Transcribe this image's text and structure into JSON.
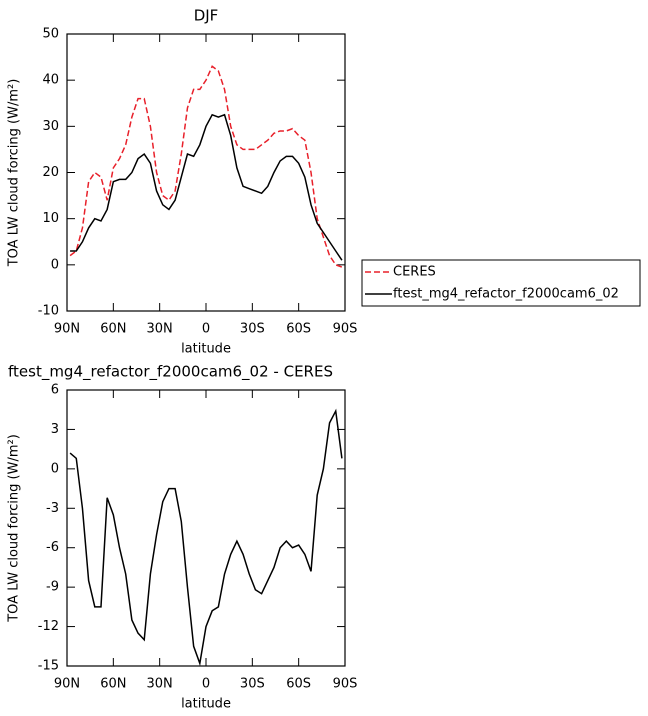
{
  "chart_data": [
    {
      "type": "line",
      "title": "DJF",
      "xlabel": "latitude",
      "ylabel": "TOA LW cloud forcing (W/m²)",
      "x": [
        88,
        84,
        80,
        76,
        72,
        68,
        64,
        60,
        56,
        52,
        48,
        44,
        40,
        36,
        32,
        28,
        24,
        20,
        16,
        12,
        8,
        4,
        0,
        -4,
        -8,
        -12,
        -16,
        -20,
        -24,
        -28,
        -32,
        -36,
        -40,
        -44,
        -48,
        -52,
        -56,
        -60,
        -64,
        -68,
        -72,
        -76,
        -80,
        -84,
        -88
      ],
      "xlim": [
        90,
        -90
      ],
      "xticks": [
        {
          "value": 90,
          "label": "90N"
        },
        {
          "value": 60,
          "label": "60N"
        },
        {
          "value": 30,
          "label": "30N"
        },
        0,
        {
          "value": -30,
          "label": "30S"
        },
        {
          "value": -60,
          "label": "60S"
        },
        {
          "value": -90,
          "label": "90S"
        }
      ],
      "ylim": [
        -10,
        50
      ],
      "yticks": [
        -10,
        0,
        10,
        20,
        30,
        40,
        50
      ],
      "legend": "right",
      "series": [
        {
          "name": "CERES",
          "color": "#e8202a",
          "dash": true,
          "values": [
            2,
            3,
            8,
            18,
            20,
            19,
            14,
            21,
            23,
            26,
            32,
            36,
            36,
            30,
            20,
            15,
            14,
            16,
            24,
            34,
            38,
            38,
            40,
            43,
            42,
            38,
            30,
            26,
            25,
            25,
            25,
            26,
            27,
            28.5,
            29,
            29,
            29.5,
            28,
            27,
            20,
            10,
            6,
            2,
            0,
            -0.5
          ]
        },
        {
          "name": "ftest_mg4_refactor_f2000cam6_02",
          "color": "#000000",
          "dash": false,
          "values": [
            3,
            3,
            5,
            8,
            10,
            9.5,
            12,
            18,
            18.5,
            18.5,
            20,
            23,
            24,
            22,
            16,
            13,
            12,
            14,
            19,
            24,
            23.5,
            26,
            30,
            32.5,
            32,
            32.5,
            28,
            21,
            17,
            16.5,
            16,
            15.5,
            17,
            20,
            22.5,
            23.5,
            23.5,
            22,
            19,
            13,
            9,
            7,
            5,
            3,
            1
          ]
        }
      ]
    },
    {
      "type": "line",
      "title": "ftest_mg4_refactor_f2000cam6_02 - CERES",
      "xlabel": "latitude",
      "ylabel": "TOA LW cloud forcing (W/m²)",
      "x": [
        88,
        84,
        80,
        76,
        72,
        68,
        64,
        60,
        56,
        52,
        48,
        44,
        40,
        36,
        32,
        28,
        24,
        20,
        16,
        12,
        8,
        4,
        0,
        -4,
        -8,
        -12,
        -16,
        -20,
        -24,
        -28,
        -32,
        -36,
        -40,
        -44,
        -48,
        -52,
        -56,
        -60,
        -64,
        -68,
        -72,
        -76,
        -80,
        -84,
        -88
      ],
      "xlim": [
        90,
        -90
      ],
      "xticks": [
        {
          "value": 90,
          "label": "90N"
        },
        {
          "value": 60,
          "label": "60N"
        },
        {
          "value": 30,
          "label": "30N"
        },
        0,
        {
          "value": -30,
          "label": "30S"
        },
        {
          "value": -60,
          "label": "60S"
        },
        {
          "value": -90,
          "label": "90S"
        }
      ],
      "ylim": [
        -15,
        6
      ],
      "yticks": [
        -15,
        -12,
        -9,
        -6,
        -3,
        0,
        3,
        6
      ],
      "series": [
        {
          "color": "#000000",
          "dash": false,
          "values": [
            1.2,
            0.8,
            -3,
            -8.5,
            -10.5,
            -10.5,
            -2.2,
            -3.5,
            -6,
            -8,
            -11.5,
            -12.5,
            -13,
            -8,
            -5,
            -2.5,
            -1.5,
            -1.5,
            -4,
            -9,
            -13.5,
            -14.8,
            -12,
            -10.8,
            -10.5,
            -8,
            -6.5,
            -5.5,
            -6.5,
            -8,
            -9.2,
            -9.5,
            -8.5,
            -7.5,
            -6,
            -5.5,
            -6,
            -5.8,
            -6.5,
            -7.8,
            -2,
            0,
            3.5,
            4.4,
            0.8
          ]
        }
      ]
    }
  ]
}
